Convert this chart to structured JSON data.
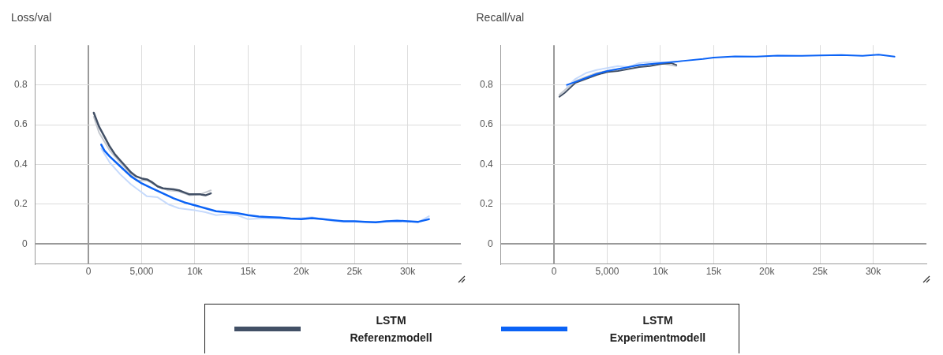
{
  "chart_data": [
    {
      "type": "line",
      "title": "Loss/val",
      "xlim": [
        -5000,
        35000
      ],
      "ylim": [
        -0.1,
        1.0
      ],
      "xticks": [
        {
          "value": -5000,
          "label": null
        },
        {
          "value": 0,
          "label": "0"
        },
        {
          "value": 5000,
          "label": "5,000"
        },
        {
          "value": 10000,
          "label": "10k"
        },
        {
          "value": 15000,
          "label": "15k"
        },
        {
          "value": 20000,
          "label": "20k"
        },
        {
          "value": 25000,
          "label": "25k"
        },
        {
          "value": 30000,
          "label": "30k"
        }
      ],
      "yticks": [
        0,
        0.2,
        0.4,
        0.6,
        0.8
      ],
      "grid": true,
      "legend": "bottom",
      "line_style": "solid",
      "marker": "none",
      "series": [
        {
          "color": "#c5c9d0",
          "x": [
            500,
            1000,
            2000,
            3000,
            4000,
            4500,
            5500,
            6500,
            7500,
            8500,
            9500,
            10500,
            11500
          ],
          "values": [
            0.64,
            0.56,
            0.47,
            0.41,
            0.35,
            0.32,
            0.32,
            0.29,
            0.27,
            0.265,
            0.245,
            0.25,
            0.27
          ]
        },
        {
          "color": "#c6dafc",
          "x": [
            1200,
            2000,
            3000,
            4000,
            5000,
            5500,
            6500,
            7500,
            8500,
            10000,
            11000,
            12000,
            13000,
            14000,
            15000,
            17000,
            19000,
            21000,
            23000,
            25000,
            27000,
            29000,
            31000,
            32000
          ],
          "values": [
            0.48,
            0.41,
            0.35,
            0.3,
            0.26,
            0.24,
            0.235,
            0.2,
            0.18,
            0.17,
            0.16,
            0.145,
            0.15,
            0.145,
            0.125,
            0.13,
            0.125,
            0.135,
            0.115,
            0.115,
            0.11,
            0.12,
            0.11,
            0.14
          ]
        },
        {
          "name": "LSTM Referenzmodell",
          "color": "#425066",
          "x": [
            500,
            1000,
            1500,
            2000,
            2500,
            3000,
            3500,
            4000,
            4500,
            5000,
            5500,
            6000,
            6500,
            7000,
            8000,
            8500,
            9000,
            9500,
            10000,
            10500,
            11000,
            11500
          ],
          "values": [
            0.66,
            0.59,
            0.54,
            0.49,
            0.45,
            0.42,
            0.39,
            0.36,
            0.34,
            0.33,
            0.325,
            0.31,
            0.29,
            0.28,
            0.275,
            0.27,
            0.26,
            0.25,
            0.25,
            0.25,
            0.245,
            0.255
          ]
        },
        {
          "name": "LSTM Experimentmodell",
          "color": "#0b63f6",
          "x": [
            1200,
            1500,
            2000,
            3000,
            4000,
            5000,
            6000,
            7000,
            8000,
            9000,
            10000,
            11000,
            12000,
            13000,
            14000,
            15000,
            16000,
            17000,
            18000,
            19000,
            20000,
            21000,
            22000,
            23000,
            24000,
            25000,
            26000,
            27000,
            28000,
            29000,
            30000,
            31000,
            32000
          ],
          "values": [
            0.5,
            0.47,
            0.44,
            0.39,
            0.34,
            0.305,
            0.28,
            0.255,
            0.23,
            0.21,
            0.195,
            0.18,
            0.165,
            0.16,
            0.155,
            0.145,
            0.138,
            0.135,
            0.133,
            0.128,
            0.125,
            0.13,
            0.125,
            0.12,
            0.115,
            0.115,
            0.112,
            0.11,
            0.115,
            0.117,
            0.115,
            0.112,
            0.125
          ]
        }
      ]
    },
    {
      "type": "line",
      "title": "Recall/val",
      "xlim": [
        -5000,
        35000
      ],
      "ylim": [
        -0.1,
        1.0
      ],
      "xticks": [
        {
          "value": -5000,
          "label": null
        },
        {
          "value": 0,
          "label": "0"
        },
        {
          "value": 5000,
          "label": "5,000"
        },
        {
          "value": 10000,
          "label": "10k"
        },
        {
          "value": 15000,
          "label": "15k"
        },
        {
          "value": 20000,
          "label": "20k"
        },
        {
          "value": 25000,
          "label": "25k"
        },
        {
          "value": 30000,
          "label": "30k"
        }
      ],
      "yticks": [
        0,
        0.2,
        0.4,
        0.6,
        0.8
      ],
      "grid": true,
      "line_style": "solid",
      "marker": "none",
      "series": [
        {
          "color": "#c5c9d0",
          "x": [
            500,
            2000,
            4000,
            6000,
            8000,
            10000,
            11500
          ],
          "values": [
            0.75,
            0.82,
            0.86,
            0.88,
            0.9,
            0.91,
            0.895
          ]
        },
        {
          "color": "#c6dafc",
          "x": [
            1200,
            2000,
            3000,
            4000,
            5000,
            6000,
            7000,
            8000,
            9000,
            10000,
            11000,
            12000
          ],
          "values": [
            0.79,
            0.83,
            0.86,
            0.875,
            0.885,
            0.895,
            0.89,
            0.91,
            0.915,
            0.915,
            0.91,
            0.92
          ]
        },
        {
          "color": "#425066",
          "x": [
            500,
            1000,
            2000,
            3000,
            4000,
            5000,
            6000,
            7000,
            8000,
            9000,
            10000,
            11000,
            11500
          ],
          "values": [
            0.74,
            0.76,
            0.81,
            0.83,
            0.85,
            0.865,
            0.87,
            0.88,
            0.89,
            0.895,
            0.905,
            0.91,
            0.9
          ]
        },
        {
          "color": "#0b63f6",
          "x": [
            1200,
            2000,
            3000,
            4000,
            5000,
            6000,
            7000,
            8000,
            9000,
            10000,
            12000,
            14000,
            15000,
            17000,
            19000,
            21000,
            23000,
            25000,
            27000,
            29000,
            30500,
            32000
          ],
          "values": [
            0.8,
            0.815,
            0.835,
            0.855,
            0.87,
            0.88,
            0.89,
            0.9,
            0.905,
            0.91,
            0.92,
            0.93,
            0.937,
            0.943,
            0.942,
            0.947,
            0.946,
            0.948,
            0.95,
            0.946,
            0.952,
            0.942
          ]
        }
      ]
    }
  ]
}
